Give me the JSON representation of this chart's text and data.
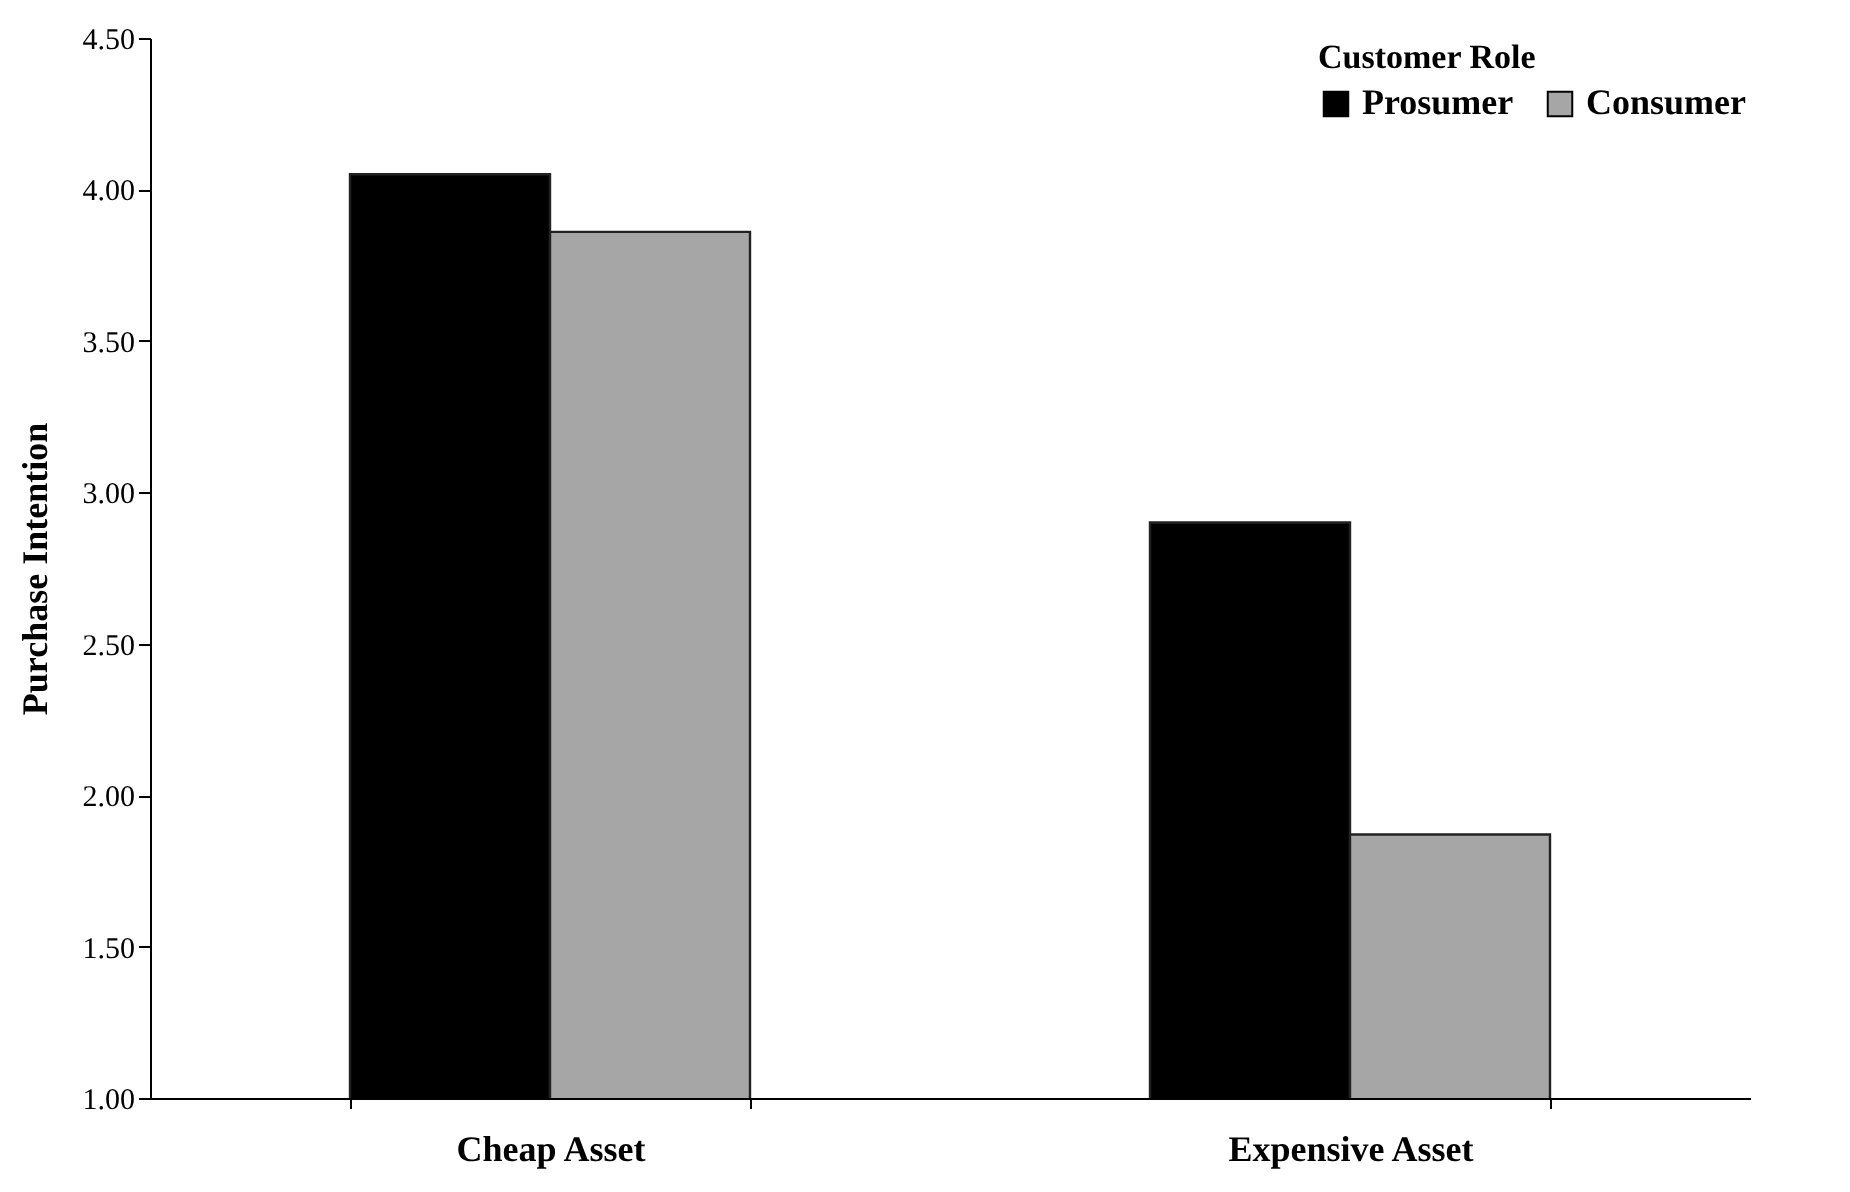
{
  "chart_data": {
    "type": "bar",
    "ylabel": "Purchase Intention",
    "legend_title": "Customer Role",
    "legend": "top right",
    "grid": false,
    "categories": [
      "Cheap Asset",
      "Expensive Asset"
    ],
    "series": [
      {
        "name": "Prosumer",
        "color": "#000000",
        "values": [
          4.05,
          2.9
        ]
      },
      {
        "name": "Consumer",
        "color": "#a6a6a6",
        "values": [
          3.86,
          1.87
        ]
      }
    ],
    "ylim": [
      1.0,
      4.5
    ],
    "yticks": [
      {
        "value": 1.0,
        "label": "1.00"
      },
      {
        "value": 1.5,
        "label": "1.50"
      },
      {
        "value": 2.0,
        "label": "2.00"
      },
      {
        "value": 2.5,
        "label": "2.50"
      },
      {
        "value": 3.0,
        "label": "3.00"
      },
      {
        "value": 3.5,
        "label": "3.50"
      },
      {
        "value": 4.0,
        "label": "4.00"
      },
      {
        "value": 4.5,
        "label": "4.50"
      }
    ]
  }
}
